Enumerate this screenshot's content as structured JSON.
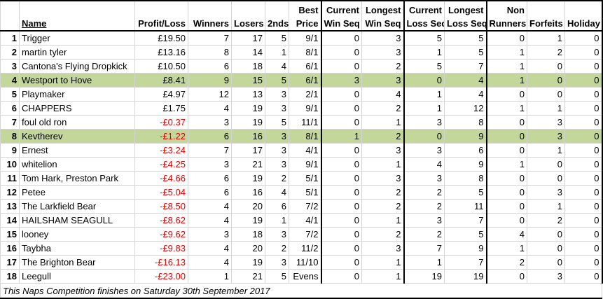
{
  "table": {
    "header": [
      [
        "Name"
      ],
      [
        "Profit/Loss"
      ],
      [
        "Winners"
      ],
      [
        "Losers"
      ],
      [
        "2nds"
      ],
      [
        "Best",
        "Price"
      ],
      [
        "Current",
        "Win Seq"
      ],
      [
        "Longest",
        "Win Seq"
      ],
      [
        "Current",
        "Loss Seq"
      ],
      [
        "Longest",
        "Loss Seq"
      ],
      [
        "Non",
        "Runners"
      ],
      [
        "Forfeits"
      ],
      [
        "Holiday"
      ]
    ],
    "highlight_rows": [
      3,
      7
    ],
    "rows": [
      [
        1,
        "Trigger",
        "£19.50",
        7,
        17,
        5,
        "9/1",
        0,
        3,
        5,
        5,
        0,
        1,
        0
      ],
      [
        2,
        "martin tyler",
        "£13.16",
        8,
        14,
        1,
        "8/1",
        0,
        3,
        1,
        5,
        1,
        2,
        0
      ],
      [
        3,
        "Cantona's Flying Dropkick",
        "£10.50",
        6,
        18,
        4,
        "6/1",
        0,
        2,
        5,
        7,
        1,
        0,
        0
      ],
      [
        4,
        "Westport to Hove",
        "£8.41",
        9,
        15,
        5,
        "6/1",
        3,
        3,
        0,
        4,
        1,
        0,
        0
      ],
      [
        5,
        "Playmaker",
        "£4.97",
        12,
        13,
        3,
        "2/1",
        0,
        4,
        1,
        4,
        0,
        0,
        0
      ],
      [
        6,
        "CHAPPERS",
        "£1.75",
        4,
        19,
        3,
        "9/1",
        0,
        2,
        1,
        12,
        1,
        1,
        0
      ],
      [
        7,
        "foul old ron",
        "-£0.37",
        3,
        19,
        5,
        "11/1",
        0,
        1,
        3,
        8,
        0,
        3,
        0
      ],
      [
        8,
        "Kevtherev",
        "-£1.22",
        6,
        16,
        3,
        "8/1",
        1,
        2,
        0,
        9,
        0,
        3,
        0
      ],
      [
        9,
        "Ernest",
        "-£3.24",
        7,
        17,
        3,
        "4/1",
        0,
        3,
        3,
        6,
        0,
        1,
        0
      ],
      [
        10,
        "whitelion",
        "-£4.25",
        3,
        21,
        3,
        "9/1",
        0,
        1,
        4,
        9,
        1,
        0,
        0
      ],
      [
        11,
        "Tom Hark, Preston Park",
        "-£4.66",
        6,
        19,
        2,
        "5/1",
        0,
        3,
        3,
        8,
        0,
        0,
        0
      ],
      [
        12,
        "Petee",
        "-£5.04",
        6,
        16,
        4,
        "5/1",
        0,
        2,
        2,
        5,
        0,
        3,
        0
      ],
      [
        13,
        "The Larkfield Bear",
        "-£8.50",
        4,
        20,
        6,
        "7/2",
        0,
        2,
        2,
        11,
        0,
        1,
        0
      ],
      [
        14,
        "HAILSHAM SEAGULL",
        "-£8.62",
        4,
        19,
        1,
        "4/1",
        0,
        1,
        3,
        7,
        0,
        2,
        0
      ],
      [
        15,
        "looney",
        "-£9.62",
        3,
        18,
        3,
        "7/2",
        0,
        2,
        2,
        5,
        4,
        0,
        0
      ],
      [
        16,
        "Taybha",
        "-£9.83",
        4,
        20,
        2,
        "11/2",
        0,
        3,
        7,
        9,
        1,
        0,
        0
      ],
      [
        17,
        "The Brighton Bear",
        "-£16.13",
        4,
        19,
        3,
        "11/10",
        0,
        1,
        1,
        7,
        2,
        0,
        0
      ],
      [
        18,
        "Leegull",
        "-£23.00",
        1,
        21,
        5,
        "Evens",
        0,
        1,
        19,
        19,
        0,
        3,
        0
      ]
    ],
    "footer": "This Naps Competition finishes on Saturday 30th September 2017"
  }
}
